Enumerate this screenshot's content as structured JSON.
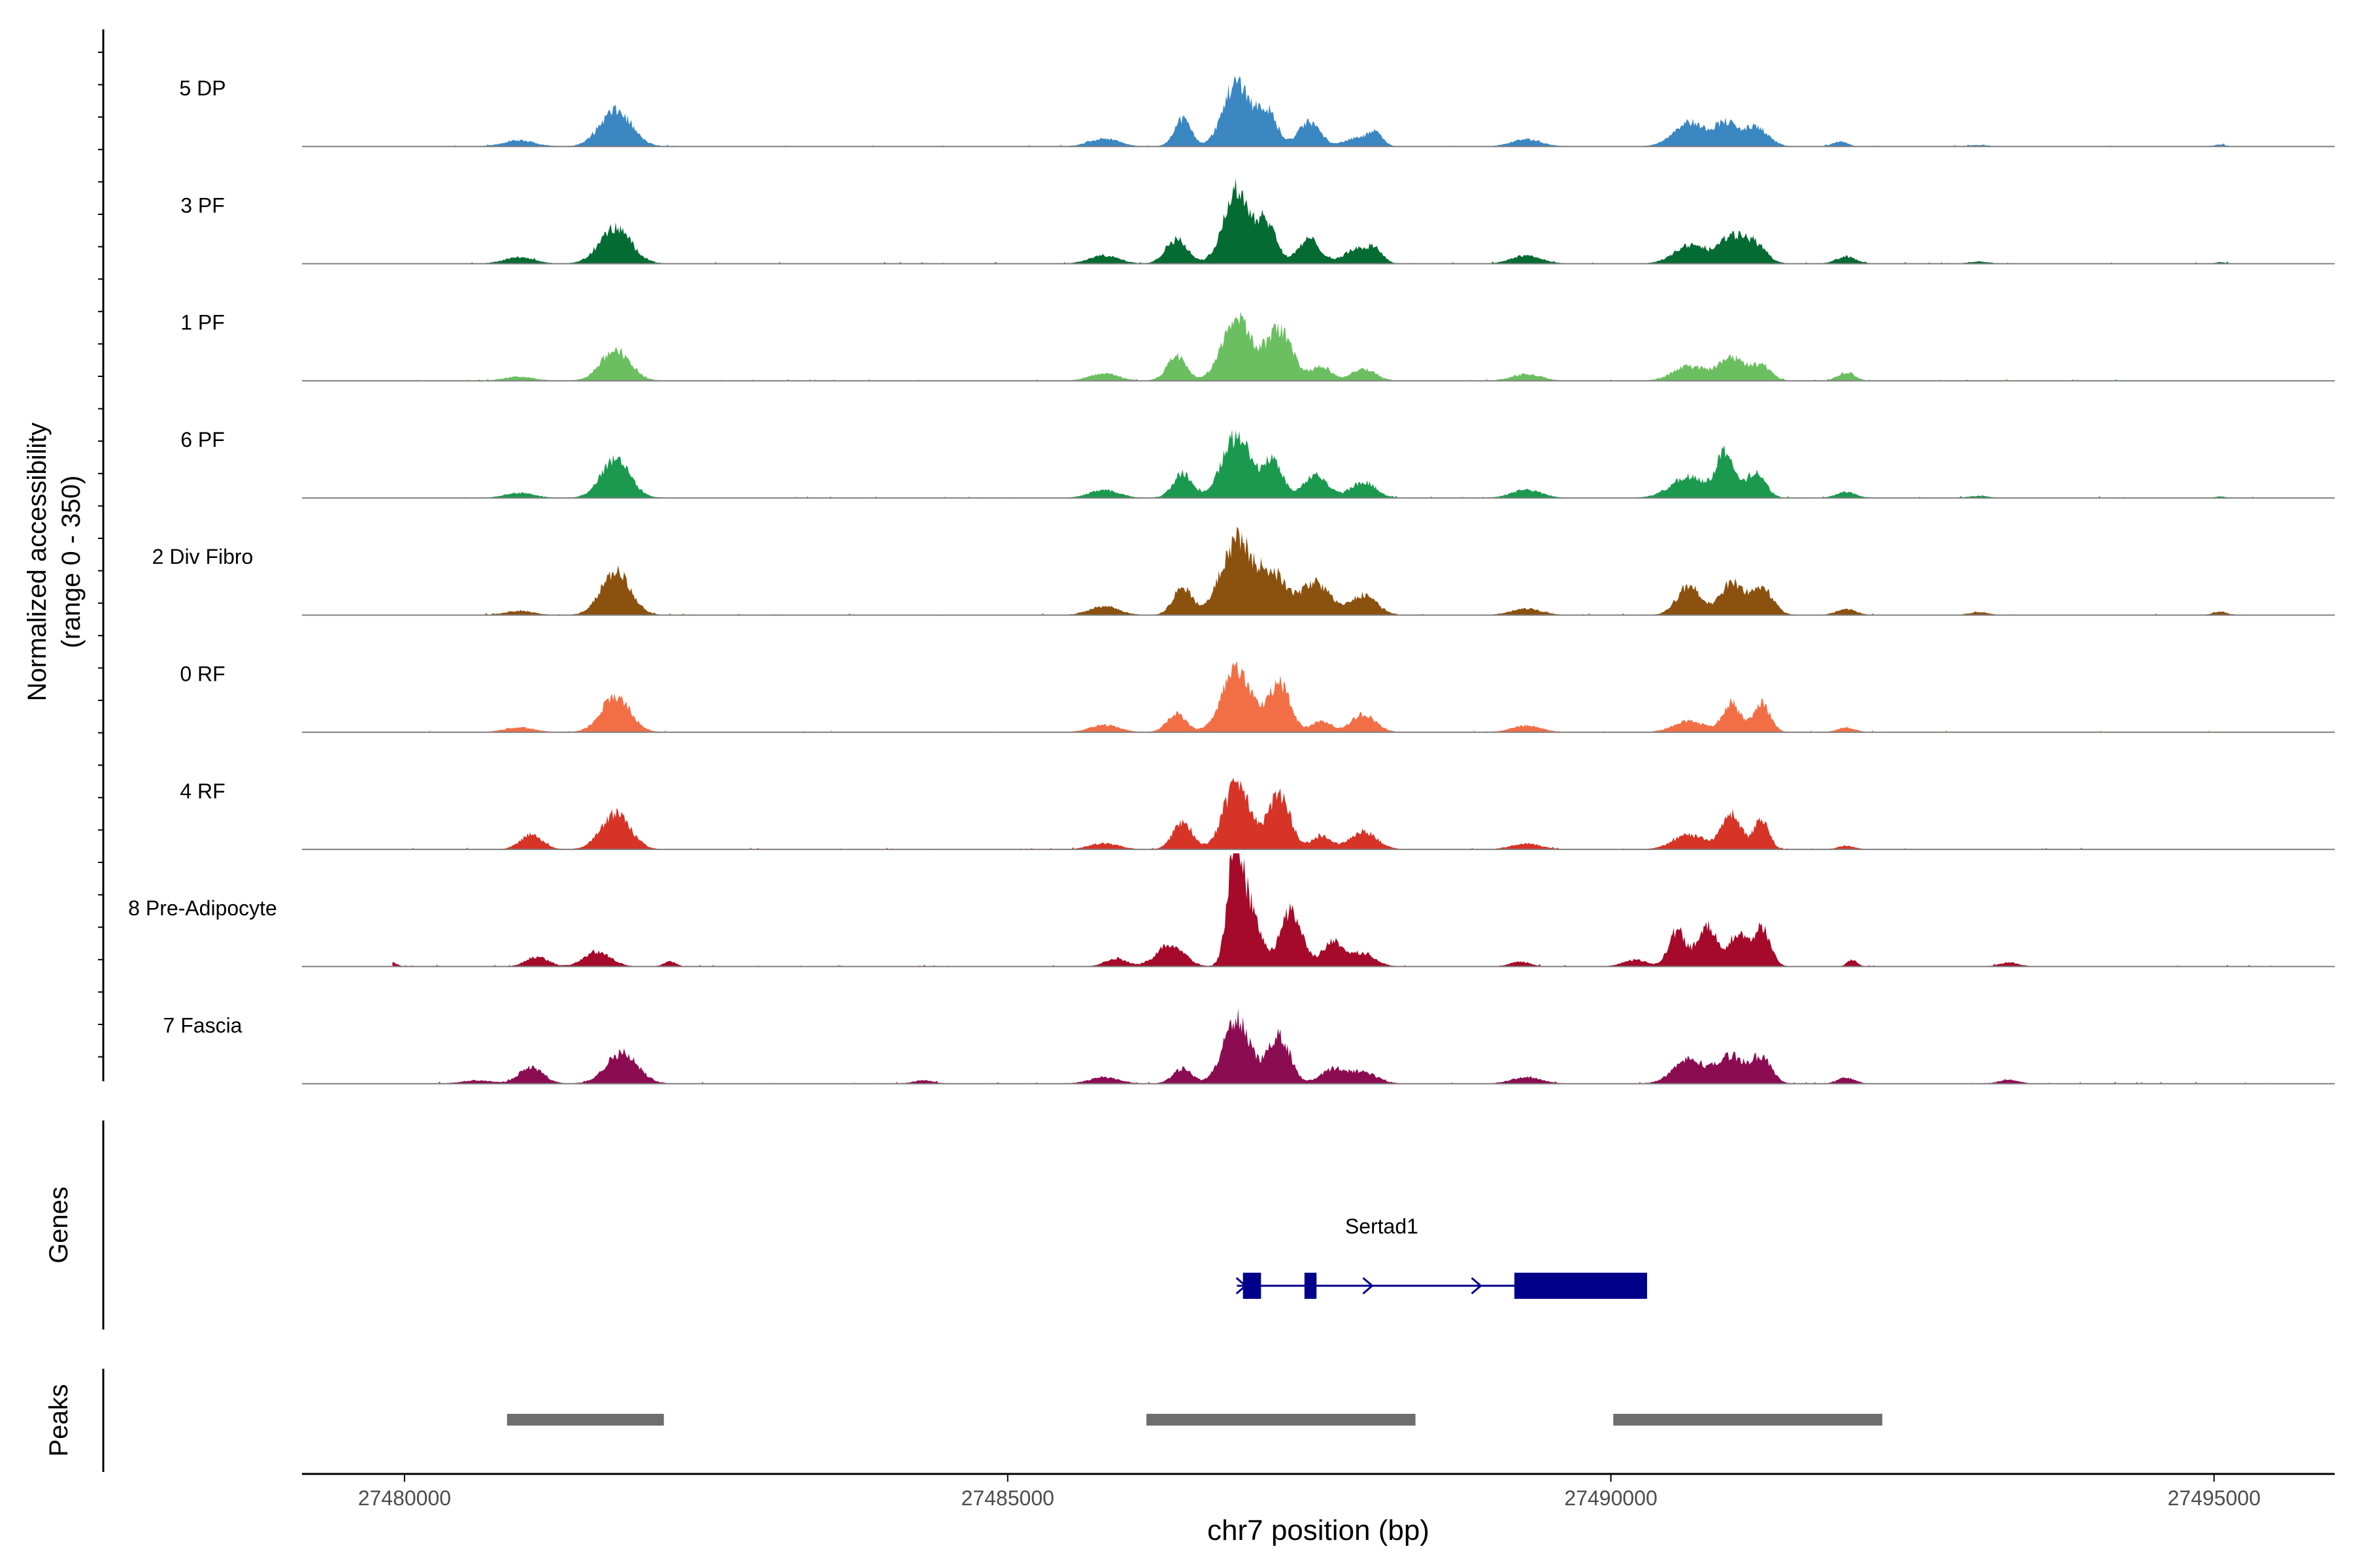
{
  "chart_data": {
    "type": "area",
    "title": "",
    "ylabel_line1": "Normalized accessibility",
    "ylabel_line2": "(range 0 - 350)",
    "xlabel": "chr7 position (bp)",
    "x_ticks": [
      27480000,
      27485000,
      27490000,
      27495000
    ],
    "x_tick_labels": [
      "27480000",
      "27485000",
      "27490000",
      "27495000"
    ],
    "xlim": [
      27479150,
      27496000
    ],
    "ylim": [
      0,
      350
    ],
    "grid": false,
    "genes_label": "Genes",
    "peaks_label": "Peaks",
    "series": [
      {
        "name": "5 DP",
        "color": "#3A87C2",
        "peaks": [
          [
            27480950,
            18,
            130
          ],
          [
            27481750,
            110,
            130
          ],
          [
            27485800,
            25,
            120
          ],
          [
            27486450,
            85,
            70
          ],
          [
            27486900,
            200,
            110
          ],
          [
            27487150,
            105,
            80
          ],
          [
            27487500,
            75,
            90
          ],
          [
            27487900,
            25,
            110
          ],
          [
            27488050,
            35,
            60
          ],
          [
            27489300,
            22,
            120
          ],
          [
            27490650,
            75,
            130
          ],
          [
            27490950,
            70,
            90
          ],
          [
            27491200,
            60,
            100
          ],
          [
            27491900,
            15,
            60
          ],
          [
            27493050,
            4,
            80
          ],
          [
            27495050,
            6,
            40
          ]
        ]
      },
      {
        "name": "3 PF",
        "color": "#046B32",
        "peaks": [
          [
            27480950,
            20,
            120
          ],
          [
            27481750,
            110,
            130
          ],
          [
            27485800,
            25,
            120
          ],
          [
            27486400,
            75,
            90
          ],
          [
            27486900,
            225,
            110
          ],
          [
            27487150,
            120,
            80
          ],
          [
            27487500,
            75,
            90
          ],
          [
            27487900,
            45,
            110
          ],
          [
            27488050,
            35,
            60
          ],
          [
            27489300,
            25,
            120
          ],
          [
            27490650,
            55,
            130
          ],
          [
            27491000,
            80,
            110
          ],
          [
            27491200,
            55,
            90
          ],
          [
            27491950,
            22,
            80
          ],
          [
            27493050,
            6,
            80
          ],
          [
            27495050,
            4,
            40
          ]
        ]
      },
      {
        "name": "1 PF",
        "color": "#6BBF60",
        "peaks": [
          [
            27480950,
            12,
            120
          ],
          [
            27481750,
            95,
            120
          ],
          [
            27485800,
            22,
            120
          ],
          [
            27486400,
            75,
            80
          ],
          [
            27486900,
            190,
            120
          ],
          [
            27487250,
            155,
            110
          ],
          [
            27487600,
            45,
            80
          ],
          [
            27487950,
            35,
            100
          ],
          [
            27489300,
            20,
            120
          ],
          [
            27490650,
            45,
            130
          ],
          [
            27491000,
            70,
            110
          ],
          [
            27491250,
            45,
            80
          ],
          [
            27491950,
            25,
            70
          ]
        ]
      },
      {
        "name": "6 PF",
        "color": "#1B9A4F",
        "peaks": [
          [
            27480950,
            15,
            120
          ],
          [
            27481750,
            120,
            120
          ],
          [
            27485800,
            25,
            120
          ],
          [
            27486450,
            75,
            80
          ],
          [
            27486900,
            190,
            120
          ],
          [
            27487200,
            110,
            80
          ],
          [
            27487550,
            70,
            100
          ],
          [
            27487950,
            50,
            100
          ],
          [
            27489300,
            25,
            120
          ],
          [
            27490650,
            65,
            150
          ],
          [
            27490950,
            140,
            70
          ],
          [
            27491200,
            80,
            80
          ],
          [
            27491950,
            18,
            80
          ],
          [
            27493050,
            6,
            80
          ],
          [
            27495050,
            4,
            40
          ]
        ]
      },
      {
        "name": "2 Div Fibro",
        "color": "#8B510F",
        "peaks": [
          [
            27480950,
            12,
            120
          ],
          [
            27481750,
            135,
            120
          ],
          [
            27485800,
            28,
            120
          ],
          [
            27486450,
            85,
            80
          ],
          [
            27486900,
            230,
            130
          ],
          [
            27487200,
            120,
            110
          ],
          [
            27487550,
            100,
            120
          ],
          [
            27487950,
            60,
            110
          ],
          [
            27489300,
            20,
            120
          ],
          [
            27490650,
            90,
            100
          ],
          [
            27491000,
            100,
            90
          ],
          [
            27491250,
            85,
            90
          ],
          [
            27491950,
            18,
            80
          ],
          [
            27493050,
            8,
            80
          ],
          [
            27495050,
            10,
            60
          ]
        ]
      },
      {
        "name": "0 RF",
        "color": "#F26F45",
        "peaks": [
          [
            27480950,
            15,
            120
          ],
          [
            27481750,
            110,
            120
          ],
          [
            27485800,
            22,
            120
          ],
          [
            27486400,
            55,
            80
          ],
          [
            27486900,
            200,
            120
          ],
          [
            27487250,
            150,
            90
          ],
          [
            27487600,
            35,
            80
          ],
          [
            27487950,
            55,
            100
          ],
          [
            27489300,
            20,
            120
          ],
          [
            27490650,
            35,
            130
          ],
          [
            27491000,
            90,
            70
          ],
          [
            27491250,
            90,
            70
          ],
          [
            27491950,
            15,
            70
          ]
        ]
      },
      {
        "name": "4 RF",
        "color": "#D53427",
        "peaks": [
          [
            27481050,
            45,
            90
          ],
          [
            27481750,
            110,
            120
          ],
          [
            27485800,
            18,
            120
          ],
          [
            27486450,
            85,
            80
          ],
          [
            27486900,
            200,
            110
          ],
          [
            27487250,
            170,
            90
          ],
          [
            27487600,
            40,
            80
          ],
          [
            27487950,
            55,
            110
          ],
          [
            27489300,
            18,
            120
          ],
          [
            27490650,
            45,
            130
          ],
          [
            27491000,
            110,
            80
          ],
          [
            27491250,
            95,
            60
          ],
          [
            27491950,
            10,
            70
          ]
        ]
      },
      {
        "name": "8 Pre-Adipocyte",
        "color": "#A50A2A",
        "peaks": [
          [
            27479900,
            12,
            40
          ],
          [
            27481100,
            30,
            90
          ],
          [
            27481600,
            45,
            110
          ],
          [
            27482200,
            15,
            50
          ],
          [
            27485900,
            25,
            90
          ],
          [
            27486350,
            70,
            110
          ],
          [
            27486880,
            310,
            60
          ],
          [
            27487000,
            180,
            90
          ],
          [
            27487350,
            170,
            90
          ],
          [
            27487700,
            75,
            90
          ],
          [
            27487950,
            40,
            100
          ],
          [
            27489250,
            15,
            80
          ],
          [
            27490200,
            20,
            100
          ],
          [
            27490550,
            110,
            70
          ],
          [
            27490800,
            130,
            80
          ],
          [
            27491050,
            100,
            70
          ],
          [
            27491250,
            120,
            70
          ],
          [
            27492000,
            20,
            40
          ],
          [
            27493300,
            12,
            80
          ]
        ]
      },
      {
        "name": "7 Fascia",
        "color": "#8C0C52",
        "peaks": [
          [
            27480600,
            10,
            120
          ],
          [
            27481050,
            50,
            100
          ],
          [
            27481800,
            95,
            130
          ],
          [
            27484300,
            10,
            80
          ],
          [
            27485800,
            20,
            120
          ],
          [
            27486450,
            45,
            80
          ],
          [
            27486900,
            200,
            110
          ],
          [
            27487250,
            150,
            90
          ],
          [
            27487700,
            45,
            100
          ],
          [
            27487950,
            35,
            110
          ],
          [
            27489300,
            20,
            120
          ],
          [
            27490650,
            75,
            130
          ],
          [
            27491000,
            85,
            110
          ],
          [
            27491250,
            80,
            80
          ],
          [
            27491950,
            18,
            70
          ],
          [
            27493300,
            12,
            80
          ]
        ]
      }
    ],
    "gene": {
      "name": "Sertad1",
      "start": 27486900,
      "end": 27490300,
      "strand": "+",
      "exons": [
        [
          27486950,
          27487100
        ],
        [
          27487460,
          27487560
        ],
        [
          27489200,
          27490300
        ]
      ],
      "arrows": [
        27486950,
        27488000,
        27488900
      ],
      "label_position": 27488100,
      "color": "#00008B"
    },
    "peak_regions": [
      [
        27480850,
        27482150
      ],
      [
        27486150,
        27488380
      ],
      [
        27490020,
        27492250
      ]
    ],
    "peak_color": "#6E6E6E"
  }
}
